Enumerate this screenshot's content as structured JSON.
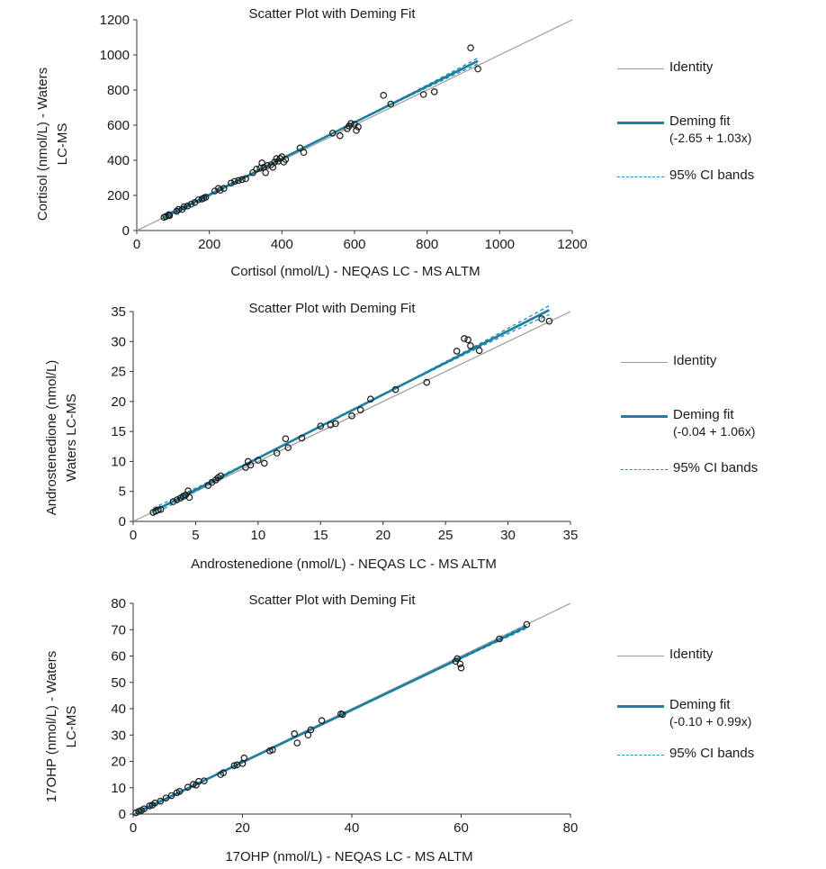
{
  "chart_data": [
    {
      "type": "scatter",
      "title": "Scatter Plot with Deming Fit",
      "xlabel": "Cortisol (nmol/L)  - NEQAS LC - MS ALTM",
      "ylabel_lines": [
        "Cortisol (nmol/L)  - Waters",
        "LC-MS"
      ],
      "xlim": [
        0,
        1200
      ],
      "ylim": [
        0,
        1200
      ],
      "xticks": [
        0,
        200,
        400,
        600,
        800,
        1000,
        1200
      ],
      "yticks": [
        0,
        200,
        400,
        600,
        800,
        1000,
        1200
      ],
      "fit": {
        "intercept": -2.65,
        "slope": 1.03,
        "ci_spread": 0.025
      },
      "legend": {
        "placement": "right",
        "identity": "Identity",
        "fit": "Deming fit",
        "fit_equation": "(-2.65 + 1.03x)",
        "ci": "95% CI bands"
      },
      "colors": {
        "identity": "#9a9a9a",
        "fit": "#1a7fa0",
        "ci": "#1f8fb3",
        "points": "#1a1a1a"
      },
      "points": [
        [
          75,
          75
        ],
        [
          80,
          80
        ],
        [
          88,
          90
        ],
        [
          90,
          85
        ],
        [
          110,
          110
        ],
        [
          115,
          120
        ],
        [
          125,
          120
        ],
        [
          130,
          135
        ],
        [
          140,
          140
        ],
        [
          150,
          150
        ],
        [
          160,
          160
        ],
        [
          170,
          175
        ],
        [
          180,
          180
        ],
        [
          185,
          185
        ],
        [
          190,
          190
        ],
        [
          215,
          225
        ],
        [
          225,
          240
        ],
        [
          230,
          230
        ],
        [
          240,
          240
        ],
        [
          260,
          270
        ],
        [
          270,
          280
        ],
        [
          280,
          285
        ],
        [
          290,
          290
        ],
        [
          300,
          295
        ],
        [
          320,
          330
        ],
        [
          330,
          350
        ],
        [
          340,
          355
        ],
        [
          345,
          385
        ],
        [
          350,
          360
        ],
        [
          355,
          330
        ],
        [
          360,
          370
        ],
        [
          370,
          375
        ],
        [
          375,
          360
        ],
        [
          380,
          390
        ],
        [
          385,
          410
        ],
        [
          390,
          395
        ],
        [
          395,
          410
        ],
        [
          400,
          420
        ],
        [
          405,
          390
        ],
        [
          410,
          405
        ],
        [
          450,
          470
        ],
        [
          460,
          445
        ],
        [
          540,
          555
        ],
        [
          560,
          540
        ],
        [
          580,
          580
        ],
        [
          585,
          595
        ],
        [
          590,
          610
        ],
        [
          600,
          605
        ],
        [
          605,
          570
        ],
        [
          610,
          590
        ],
        [
          680,
          770
        ],
        [
          700,
          720
        ],
        [
          790,
          775
        ],
        [
          820,
          790
        ],
        [
          920,
          1040
        ],
        [
          940,
          920
        ]
      ]
    },
    {
      "type": "scatter",
      "title": "Scatter Plot with Deming Fit",
      "xlabel": "Androstenedione  (nmol/L)  - NEQAS LC - MS ALTM",
      "ylabel_lines": [
        "Androstenedione (nmol/L)",
        "Waters LC-MS"
      ],
      "xlim": [
        0,
        35
      ],
      "ylim": [
        0,
        35
      ],
      "xticks": [
        0,
        5,
        10,
        15,
        20,
        25,
        30,
        35
      ],
      "yticks": [
        0,
        5,
        10,
        15,
        20,
        25,
        30,
        35
      ],
      "fit": {
        "intercept": -0.04,
        "slope": 1.06,
        "ci_spread": 0.03
      },
      "legend": {
        "placement": "right",
        "identity": "Identity",
        "fit": "Deming fit",
        "fit_equation": "(-0.04 + 1.06x)",
        "ci": "95% CI bands"
      },
      "colors": {
        "identity": "#9a9a9a",
        "fit": "#1a7fa0",
        "ci": "#1f8fb3",
        "points": "#1a1a1a"
      },
      "points": [
        [
          1.6,
          1.5
        ],
        [
          1.8,
          1.7
        ],
        [
          2.0,
          1.9
        ],
        [
          2.2,
          2.0
        ],
        [
          3.2,
          3.3
        ],
        [
          3.5,
          3.6
        ],
        [
          3.8,
          3.9
        ],
        [
          4.0,
          4.2
        ],
        [
          4.2,
          4.4
        ],
        [
          4.4,
          5.1
        ],
        [
          4.5,
          4.0
        ],
        [
          6.0,
          6.0
        ],
        [
          6.3,
          6.5
        ],
        [
          6.6,
          6.9
        ],
        [
          6.8,
          7.3
        ],
        [
          7.0,
          7.6
        ],
        [
          9.0,
          9.0
        ],
        [
          9.2,
          10.0
        ],
        [
          9.4,
          9.4
        ],
        [
          10.0,
          10.2
        ],
        [
          10.5,
          9.7
        ],
        [
          11.5,
          11.4
        ],
        [
          12.2,
          13.8
        ],
        [
          12.4,
          12.3
        ],
        [
          13.5,
          13.9
        ],
        [
          15.0,
          15.9
        ],
        [
          15.8,
          16.1
        ],
        [
          16.2,
          16.3
        ],
        [
          17.5,
          17.6
        ],
        [
          18.2,
          18.6
        ],
        [
          19.0,
          20.4
        ],
        [
          21.0,
          22.0
        ],
        [
          23.5,
          23.2
        ],
        [
          25.9,
          28.4
        ],
        [
          26.5,
          30.5
        ],
        [
          26.8,
          30.3
        ],
        [
          27.0,
          29.3
        ],
        [
          27.7,
          28.5
        ],
        [
          32.7,
          33.8
        ],
        [
          33.3,
          33.4
        ]
      ]
    },
    {
      "type": "scatter",
      "title": "Scatter Plot with Deming Fit",
      "xlabel": "17OHP (nmol/L)  - NEQAS LC - MS ALTM",
      "ylabel_lines": [
        "17OHP (nmol/L)  - Waters",
        "LC-MS"
      ],
      "xlim": [
        0,
        80
      ],
      "ylim": [
        0,
        80
      ],
      "xticks": [
        0,
        20,
        40,
        60,
        80
      ],
      "yticks": [
        0,
        10,
        20,
        30,
        40,
        50,
        60,
        70,
        80
      ],
      "fit": {
        "intercept": -0.1,
        "slope": 0.99,
        "ci_spread": 0.012
      },
      "legend": {
        "placement": "right",
        "identity": "Identity",
        "fit": "Deming fit",
        "fit_equation": "(-0.10 + 0.99x)",
        "ci": "95% CI bands"
      },
      "colors": {
        "identity": "#9a9a9a",
        "fit": "#1a7fa0",
        "ci": "#1f8fb3",
        "points": "#1a1a1a"
      },
      "points": [
        [
          0.5,
          0.5
        ],
        [
          1.0,
          1.0
        ],
        [
          1.5,
          1.4
        ],
        [
          2.0,
          2.0
        ],
        [
          3.0,
          3.1
        ],
        [
          3.5,
          3.4
        ],
        [
          4.0,
          4.2
        ],
        [
          5.0,
          4.9
        ],
        [
          6.0,
          6.1
        ],
        [
          7.0,
          7.0
        ],
        [
          8.0,
          8.1
        ],
        [
          8.5,
          8.6
        ],
        [
          10.0,
          10.2
        ],
        [
          11.0,
          11.3
        ],
        [
          11.5,
          11.0
        ],
        [
          12.0,
          12.4
        ],
        [
          13.0,
          12.6
        ],
        [
          16.0,
          15.0
        ],
        [
          16.5,
          15.7
        ],
        [
          18.5,
          18.4
        ],
        [
          19.0,
          18.7
        ],
        [
          20.0,
          19.2
        ],
        [
          20.3,
          21.3
        ],
        [
          25.0,
          24.0
        ],
        [
          25.5,
          24.4
        ],
        [
          29.5,
          30.5
        ],
        [
          30.0,
          27.0
        ],
        [
          32.0,
          30.0
        ],
        [
          32.5,
          32.0
        ],
        [
          34.5,
          35.5
        ],
        [
          38.0,
          38.0
        ],
        [
          38.3,
          37.8
        ],
        [
          59.0,
          58.0
        ],
        [
          59.3,
          59.0
        ],
        [
          59.8,
          57.0
        ],
        [
          60.0,
          55.5
        ],
        [
          67.0,
          66.5
        ],
        [
          72.0,
          72.0
        ]
      ]
    }
  ]
}
